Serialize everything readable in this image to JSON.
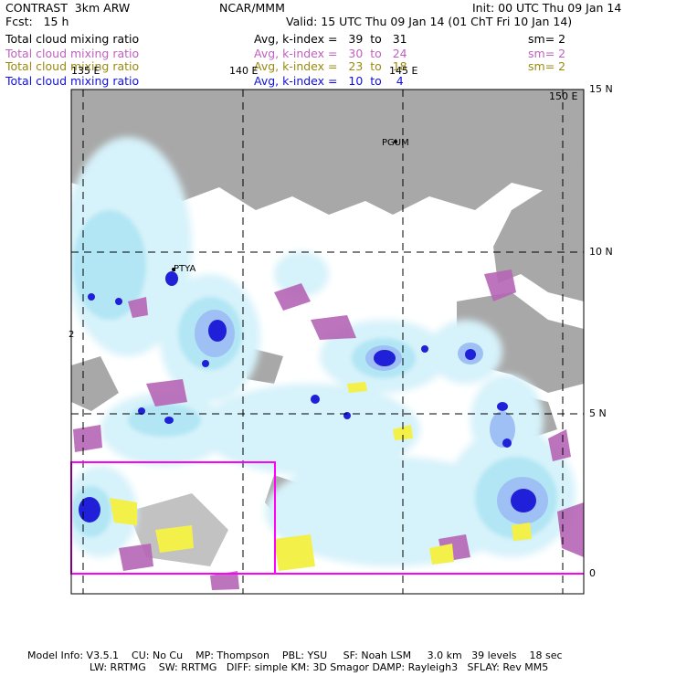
{
  "header": {
    "model": "CONTRAST  3km ARW",
    "org": "NCAR/MMM",
    "init": "Init: 00 UTC Thu 09 Jan 14",
    "fcst": "Fcst:   15 h",
    "valid": "Valid: 15 UTC Thu 09 Jan 14 (01 ChT Fri 10 Jan 14)"
  },
  "legend": [
    {
      "field": "Total cloud mixing ratio",
      "avg": "Avg, k-index =   39  to   31",
      "sm": "sm= 2",
      "color": "#000000"
    },
    {
      "field": "Total cloud mixing ratio",
      "avg": "Avg, k-index =   30  to   24",
      "sm": "sm= 2",
      "color": "#c060c0"
    },
    {
      "field": "Total cloud mixing ratio",
      "avg": "Avg, k-index =   23  to   18",
      "sm": "sm= 2",
      "color": "#9a8a10"
    },
    {
      "field": "Total cloud mixing ratio",
      "avg": "Avg, k-index =   10  to    4",
      "sm": "sm= 2",
      "color": "#1010e0"
    }
  ],
  "map": {
    "lon_labels": [
      "135 E",
      "140 E",
      "145 E",
      "150 E"
    ],
    "lat_labels": [
      "15 N",
      "10 N",
      "5 N",
      "0"
    ],
    "stations": [
      "PTYA",
      "PGUM"
    ],
    "edge_marker": "2"
  },
  "footer": {
    "line1": "Model Info: V3.5.1    CU: No Cu    MP: Thompson    PBL: YSU     SF: Noah LSM     3.0 km   39 levels    18 sec",
    "line2": "LW: RRTMG    SW: RRTMG   DIFF: simple KM: 3D Smagor DAMP: Rayleigh3   SFLAY: Rev MM5"
  }
}
